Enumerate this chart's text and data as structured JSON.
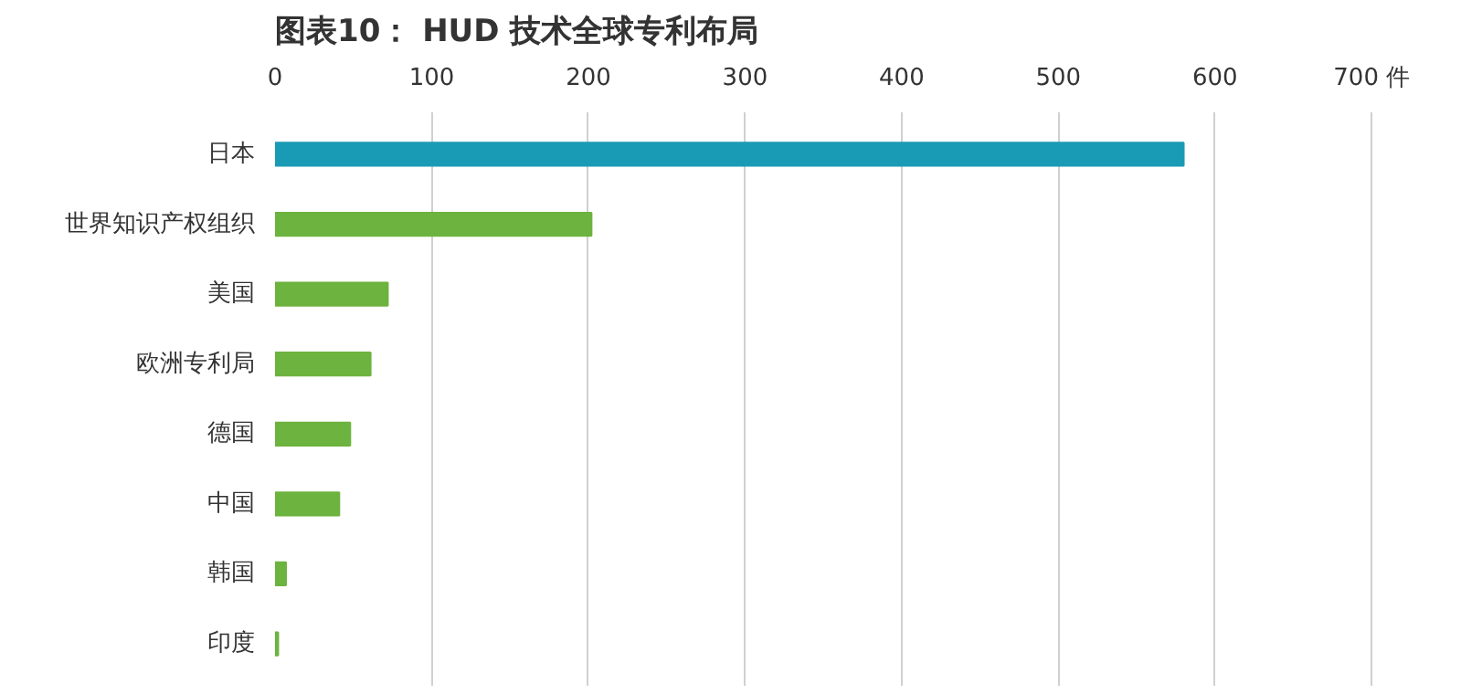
{
  "chart_data": {
    "type": "bar",
    "orientation": "horizontal",
    "title": "图表10： HUD 技术全球专利布局",
    "categories": [
      "日本",
      "世界知识产权组织",
      "美国",
      "欧洲专利局",
      "德国",
      "中国",
      "韩国",
      "印度"
    ],
    "values": [
      580,
      202,
      72,
      61,
      48,
      41,
      7,
      2
    ],
    "colors": [
      "#1a9bb5",
      "#6db33f",
      "#6db33f",
      "#6db33f",
      "#6db33f",
      "#6db33f",
      "#6db33f",
      "#6db33f"
    ],
    "xlim": [
      0,
      700
    ],
    "xticks": [
      0,
      100,
      200,
      300,
      400,
      500,
      600,
      {
        "value": 700,
        "label": "700 件"
      }
    ],
    "grid": "x"
  }
}
